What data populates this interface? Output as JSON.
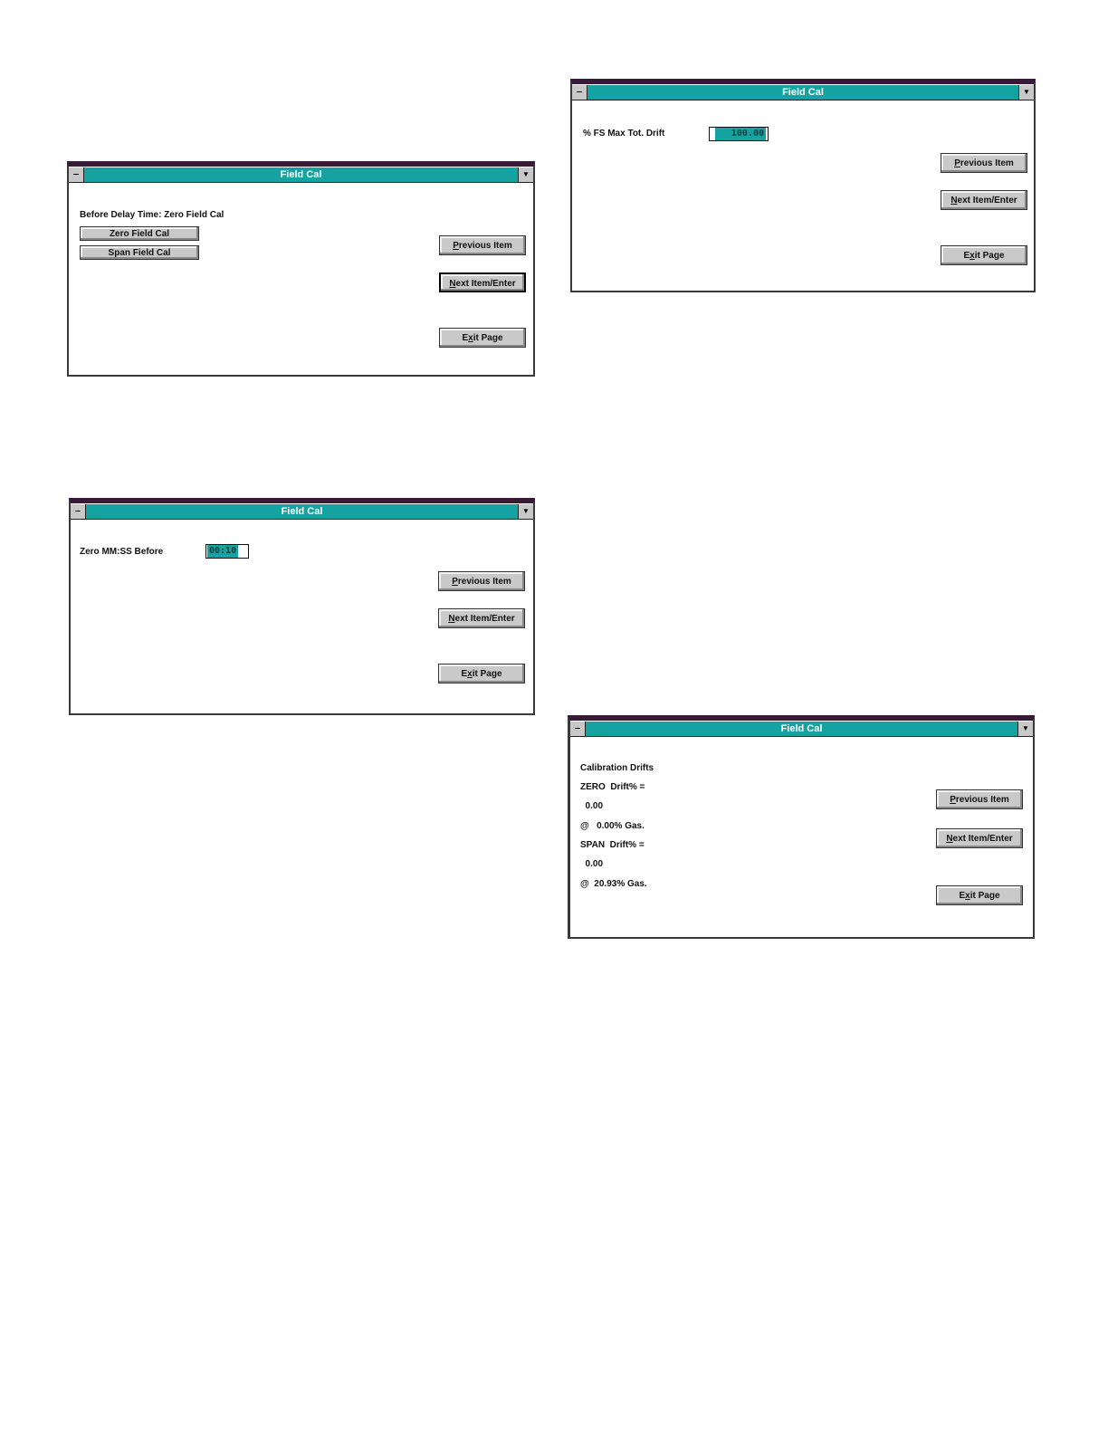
{
  "colors": {
    "titlebar": "#14a3a0",
    "selection": "#14a3a0",
    "button": "#c9c9c9"
  },
  "icons": {
    "system_menu": "minus-icon",
    "dropdown": "triangle-down-icon"
  },
  "system_menu_glyph": "‒",
  "dropdown_glyph": "▼",
  "buttons": {
    "previous": {
      "key": "P",
      "rest": "revious Item"
    },
    "next": {
      "key": "N",
      "rest": "ext Item/Enter"
    },
    "exit": {
      "pre": "E",
      "key": "x",
      "rest": "it Page"
    }
  },
  "windows": [
    {
      "title": "Field Cal",
      "heading": "Before Delay Time: Zero Field Cal",
      "zero_button": "Zero Field Cal",
      "span_button": "Span Field Cal"
    },
    {
      "title": "Field Cal",
      "field_label": "% FS Max Tot. Drift",
      "field_value": "100.00"
    },
    {
      "title": "Field Cal",
      "field_label": "Zero MM:SS Before",
      "field_value": "00:10"
    },
    {
      "title": "Field Cal",
      "lines": [
        "Calibration Drifts",
        "ZERO  Drift% =",
        "  0.00",
        "@   0.00% Gas.",
        "SPAN  Drift% =",
        "  0.00",
        "@  20.93% Gas."
      ]
    }
  ]
}
